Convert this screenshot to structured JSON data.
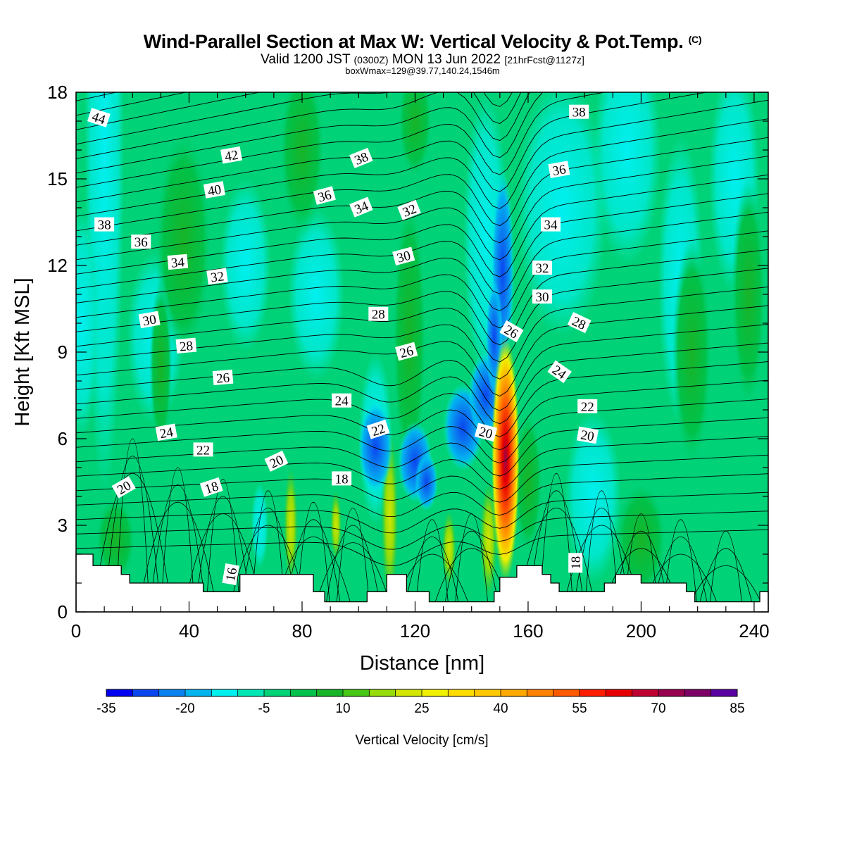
{
  "header": {
    "title_main": "Wind-Parallel Section at Max W: Vertical Velocity & Pot.Temp.",
    "title_mark": "(C)",
    "valid_prefix": "Valid 1200 JST",
    "valid_utc": "(0300Z)",
    "valid_date": "MON 13 Jun 2022",
    "valid_fcst": "[21hrFcst@1127z]",
    "boxline": "boxWmax=129@39.77,140.24,1546m"
  },
  "colors": {
    "colorbar": [
      "#0000f0",
      "#0a46f0",
      "#0a82f0",
      "#00b4f0",
      "#00f0f0",
      "#00e6b4",
      "#00d278",
      "#00c24a",
      "#18b428",
      "#46c814",
      "#96dc0a",
      "#d2e600",
      "#f0f000",
      "#ffdc00",
      "#ffc800",
      "#ffa800",
      "#ff8200",
      "#ff5a00",
      "#ff1e00",
      "#e60000",
      "#be0032",
      "#96004e",
      "#7d0066",
      "#5a00a0"
    ]
  },
  "chart_data": {
    "type": "heatmap",
    "xlabel": "Distance [nm]",
    "ylabel": "Height [Kft MSL]",
    "xlim": [
      0,
      245
    ],
    "ylim": [
      0,
      18
    ],
    "xticks": [
      0,
      40,
      80,
      120,
      160,
      200,
      240
    ],
    "yticks": [
      0,
      3,
      6,
      9,
      12,
      15,
      18
    ],
    "colorbar": {
      "label": "Vertical Velocity [cm/s]",
      "min": -35,
      "max": 85,
      "step": 5,
      "ticks": [
        -35,
        -20,
        -5,
        10,
        25,
        40,
        55,
        70,
        85
      ]
    },
    "max_w": {
      "x": 152,
      "y": 5.3,
      "value": 129
    },
    "terrain": [
      [
        0,
        2
      ],
      [
        6,
        2
      ],
      [
        6,
        1.6
      ],
      [
        16,
        1.6
      ],
      [
        16,
        1.3
      ],
      [
        19,
        1.3
      ],
      [
        19,
        1.0
      ],
      [
        45,
        1.0
      ],
      [
        45,
        0.7
      ],
      [
        58,
        0.7
      ],
      [
        58,
        1.3
      ],
      [
        84,
        1.3
      ],
      [
        84,
        0.7
      ],
      [
        88,
        0.7
      ],
      [
        88,
        0.35
      ],
      [
        103,
        0.35
      ],
      [
        103,
        0.7
      ],
      [
        110,
        0.7
      ],
      [
        110,
        1.3
      ],
      [
        117,
        1.3
      ],
      [
        117,
        0.7
      ],
      [
        125,
        0.7
      ],
      [
        125,
        0.35
      ],
      [
        148,
        0.35
      ],
      [
        148,
        0.7
      ],
      [
        150,
        0.7
      ],
      [
        150,
        1.2
      ],
      [
        156,
        1.2
      ],
      [
        156,
        1.6
      ],
      [
        165,
        1.6
      ],
      [
        165,
        1.3
      ],
      [
        168,
        1.3
      ],
      [
        168,
        1.0
      ],
      [
        171,
        1.0
      ],
      [
        171,
        0.7
      ],
      [
        187,
        0.7
      ],
      [
        187,
        1.0
      ],
      [
        191,
        1.0
      ],
      [
        191,
        1.3
      ],
      [
        200,
        1.3
      ],
      [
        200,
        1.0
      ],
      [
        216,
        1.0
      ],
      [
        216,
        0.7
      ],
      [
        219,
        0.7
      ],
      [
        219,
        0.35
      ],
      [
        242,
        0.35
      ],
      [
        242,
        0.7
      ],
      [
        245,
        0.7
      ]
    ],
    "contour_labels": [
      {
        "text": "44",
        "x": 8,
        "y": 17.1,
        "rot": 18
      },
      {
        "text": "42",
        "x": 55,
        "y": 15.8,
        "rot": -10
      },
      {
        "text": "40",
        "x": 49,
        "y": 14.6,
        "rot": -10
      },
      {
        "text": "38",
        "x": 10,
        "y": 13.4,
        "rot": 0
      },
      {
        "text": "36",
        "x": 23,
        "y": 12.8,
        "rot": 0
      },
      {
        "text": "34",
        "x": 36,
        "y": 12.1,
        "rot": -5
      },
      {
        "text": "32",
        "x": 50,
        "y": 11.6,
        "rot": -8
      },
      {
        "text": "30",
        "x": 26,
        "y": 10.1,
        "rot": -10
      },
      {
        "text": "28",
        "x": 39,
        "y": 9.2,
        "rot": -5
      },
      {
        "text": "26",
        "x": 52,
        "y": 8.1,
        "rot": -5
      },
      {
        "text": "24",
        "x": 32,
        "y": 6.2,
        "rot": -10
      },
      {
        "text": "22",
        "x": 45,
        "y": 5.6,
        "rot": 0
      },
      {
        "text": "20",
        "x": 17,
        "y": 4.3,
        "rot": -30
      },
      {
        "text": "18",
        "x": 48,
        "y": 4.3,
        "rot": -18
      },
      {
        "text": "16",
        "x": 55,
        "y": 1.3,
        "rot": -80
      },
      {
        "text": "20",
        "x": 71,
        "y": 5.2,
        "rot": -25
      },
      {
        "text": "18",
        "x": 94,
        "y": 4.6,
        "rot": 0
      },
      {
        "text": "24",
        "x": 94,
        "y": 7.3,
        "rot": 0
      },
      {
        "text": "22",
        "x": 107,
        "y": 6.3,
        "rot": -18
      },
      {
        "text": "28",
        "x": 107,
        "y": 10.3,
        "rot": 0
      },
      {
        "text": "26",
        "x": 117,
        "y": 9.0,
        "rot": -15
      },
      {
        "text": "30",
        "x": 116,
        "y": 12.3,
        "rot": -15
      },
      {
        "text": "32",
        "x": 118,
        "y": 13.9,
        "rot": -22
      },
      {
        "text": "34",
        "x": 101,
        "y": 14.0,
        "rot": -22
      },
      {
        "text": "36",
        "x": 88,
        "y": 14.4,
        "rot": -15
      },
      {
        "text": "38",
        "x": 101,
        "y": 15.7,
        "rot": -22
      },
      {
        "text": "20",
        "x": 145,
        "y": 6.2,
        "rot": 15
      },
      {
        "text": "26",
        "x": 154,
        "y": 9.7,
        "rot": 30
      },
      {
        "text": "30",
        "x": 165,
        "y": 10.9,
        "rot": 0
      },
      {
        "text": "32",
        "x": 165,
        "y": 11.9,
        "rot": 0
      },
      {
        "text": "34",
        "x": 168,
        "y": 13.4,
        "rot": 0
      },
      {
        "text": "36",
        "x": 171,
        "y": 15.3,
        "rot": -10
      },
      {
        "text": "38",
        "x": 178,
        "y": 17.3,
        "rot": 0
      },
      {
        "text": "28",
        "x": 178,
        "y": 10.0,
        "rot": 25
      },
      {
        "text": "24",
        "x": 171,
        "y": 8.3,
        "rot": 35
      },
      {
        "text": "22",
        "x": 181,
        "y": 7.1,
        "rot": 0
      },
      {
        "text": "20",
        "x": 181,
        "y": 6.1,
        "rot": 10
      },
      {
        "text": "18",
        "x": 177,
        "y": 1.7,
        "rot": -90
      }
    ]
  }
}
